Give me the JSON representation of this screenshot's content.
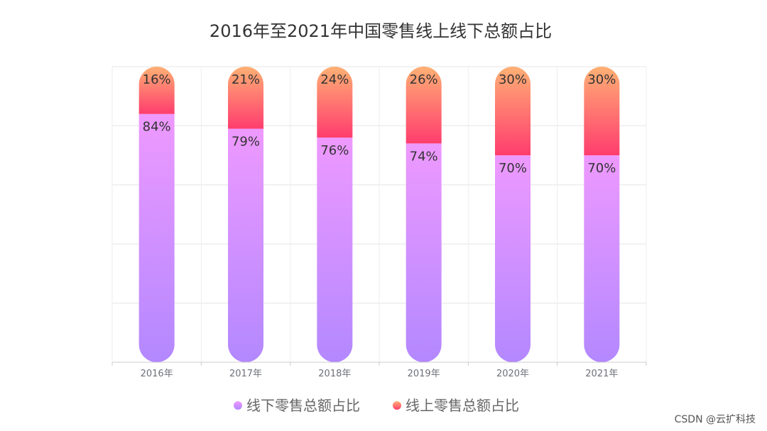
{
  "chart_data": {
    "type": "bar",
    "stacked": true,
    "title": "2016年至2021年中国零售线上线下总额占比",
    "categories": [
      "2016年",
      "2017年",
      "2018年",
      "2019年",
      "2020年",
      "2021年"
    ],
    "ylim": [
      0,
      100
    ],
    "grid": true,
    "legend_position": "bottom-center",
    "series": [
      {
        "name": "线下零售总额占比",
        "values": [
          84,
          79,
          76,
          74,
          70,
          70
        ],
        "labels": [
          "84%",
          "79%",
          "76%",
          "74%",
          "70%",
          "70%"
        ],
        "color_top": "#ee99ff",
        "color_bottom": "#b388ff"
      },
      {
        "name": "线上零售总额占比",
        "values": [
          16,
          21,
          24,
          26,
          30,
          30
        ],
        "labels": [
          "16%",
          "21%",
          "24%",
          "26%",
          "30%",
          "30%"
        ],
        "color_top": "#ffb074",
        "color_bottom": "#ff3d6e"
      }
    ]
  },
  "watermark": "CSDN @云扩科技"
}
